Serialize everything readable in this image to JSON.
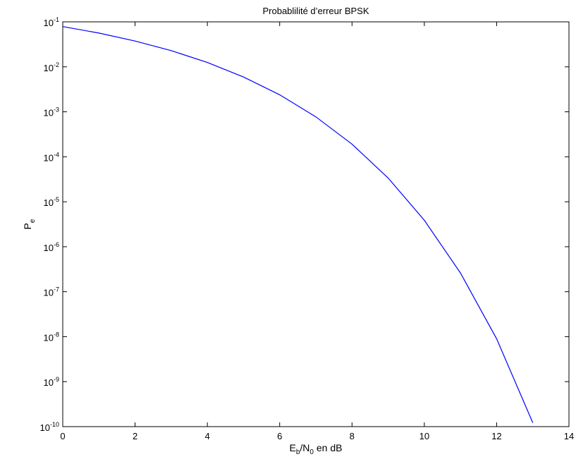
{
  "chart_data": {
    "type": "line",
    "title": "Probablilité d’erreur BPSK",
    "xlabel": {
      "main": "E",
      "sub1": "b",
      "mid": "/N",
      "sub2": "0",
      "tail": " en dB"
    },
    "ylabel": {
      "main": "P",
      "sub": "e"
    },
    "xlim": [
      0,
      14
    ],
    "ylim": [
      1e-10,
      0.1
    ],
    "yscale": "log",
    "grid": false,
    "x_ticks": [
      "0",
      "2",
      "4",
      "6",
      "8",
      "10",
      "12",
      "14"
    ],
    "y_ticks": [
      {
        "base": "10",
        "exp": "-10"
      },
      {
        "base": "10",
        "exp": "-9"
      },
      {
        "base": "10",
        "exp": "-8"
      },
      {
        "base": "10",
        "exp": "-7"
      },
      {
        "base": "10",
        "exp": "-6"
      },
      {
        "base": "10",
        "exp": "-5"
      },
      {
        "base": "10",
        "exp": "-4"
      },
      {
        "base": "10",
        "exp": "-3"
      },
      {
        "base": "10",
        "exp": "-2"
      },
      {
        "base": "10",
        "exp": "-1"
      }
    ],
    "series": [
      {
        "color": "#0000ff",
        "x": [
          0,
          1,
          2,
          3,
          4,
          5,
          6,
          7,
          8,
          9,
          10,
          11,
          12,
          13
        ],
        "y": [
          0.0786,
          0.0563,
          0.0375,
          0.0229,
          0.0125,
          0.00595,
          0.00239,
          0.000773,
          0.000191,
          3.36e-05,
          3.87e-06,
          2.61e-07,
          9e-09,
          1.22e-10
        ]
      }
    ]
  }
}
